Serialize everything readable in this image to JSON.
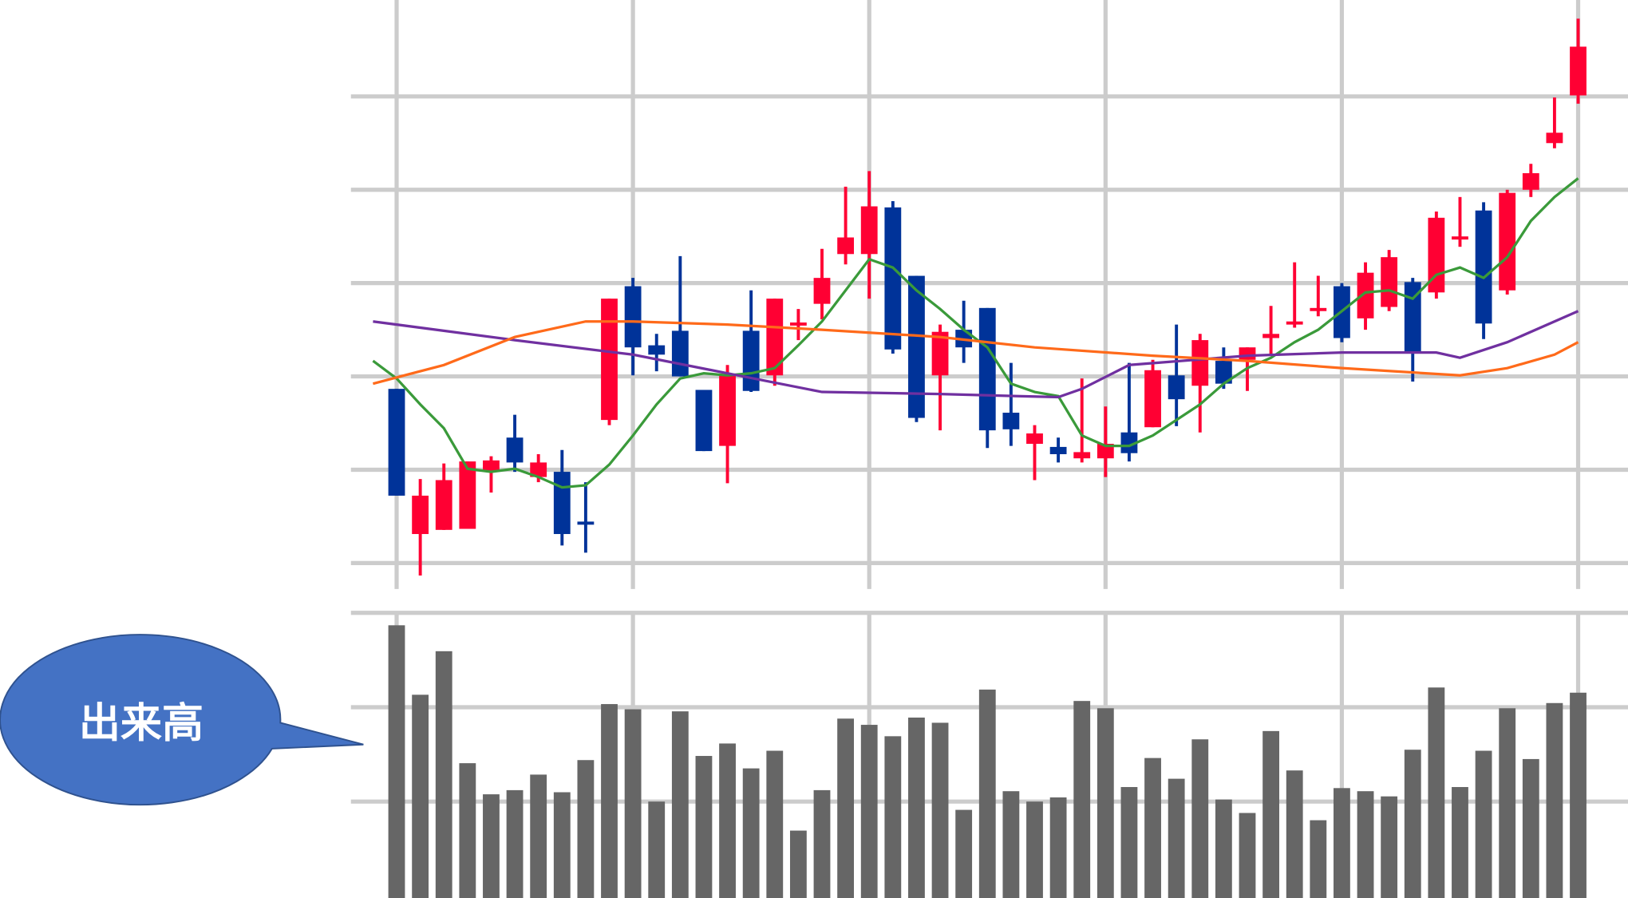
{
  "callout": "出来高",
  "chart_data": [
    {
      "type": "candlestick",
      "x": [
        0,
        1,
        2,
        3,
        4,
        5,
        6,
        7,
        8,
        9,
        10,
        11,
        12,
        13,
        14,
        15,
        16,
        17,
        18,
        19,
        20,
        21,
        22,
        23,
        24,
        25,
        26,
        27,
        28,
        29,
        30,
        31,
        32,
        33,
        34,
        35,
        36,
        37,
        38,
        39,
        40,
        41,
        42,
        43,
        44,
        45,
        46,
        47,
        48,
        49,
        50
      ],
      "open": [
        168,
        28,
        32,
        33,
        88,
        121,
        83,
        88,
        40,
        138,
        267,
        210,
        224,
        167,
        113,
        224,
        181,
        229,
        250,
        298,
        298,
        343,
        277,
        181,
        225,
        246,
        145,
        115,
        112,
        101,
        101,
        126,
        131,
        181,
        171,
        195,
        196,
        217,
        230,
        243,
        267,
        236,
        247,
        271,
        261,
        312,
        340,
        263,
        360,
        405,
        451
      ],
      "high": [
        168,
        81,
        96,
        98,
        103,
        143,
        105,
        109,
        78,
        255,
        275,
        221,
        296,
        167,
        191,
        263,
        255,
        245,
        303,
        363,
        378,
        349,
        277,
        230,
        253,
        246,
        193,
        133,
        121,
        178,
        151,
        193,
        196,
        230,
        221,
        208,
        208,
        248,
        290,
        277,
        270,
        290,
        302,
        275,
        339,
        353,
        348,
        360,
        385,
        449,
        525
      ],
      "low": [
        65,
        -12,
        32,
        33,
        68,
        88,
        78,
        17,
        10,
        133,
        181,
        185,
        180,
        108,
        77,
        165,
        171,
        215,
        235,
        288,
        255,
        202,
        136,
        128,
        193,
        111,
        113,
        80,
        97,
        97,
        83,
        98,
        131,
        132,
        126,
        168,
        166,
        201,
        227,
        238,
        213,
        225,
        243,
        175,
        255,
        305,
        216,
        259,
        353,
        400,
        443
      ],
      "close": [
        65,
        65,
        80,
        98,
        99,
        97,
        97,
        28,
        38,
        255,
        208,
        201,
        180,
        108,
        181,
        166,
        255,
        232,
        275,
        314,
        344,
        206,
        140,
        223,
        208,
        128,
        129,
        125,
        105,
        107,
        115,
        106,
        186,
        158,
        215,
        173,
        208,
        221,
        233,
        246,
        217,
        280,
        295,
        204,
        333,
        315,
        231,
        357,
        376,
        415,
        498
      ],
      "up_color": "#ff0033",
      "down_color": "#003399",
      "series": [
        {
          "color": "#3a9a3a",
          "x": [
            -1,
            0,
            1,
            2,
            3,
            4,
            5,
            6,
            7,
            8,
            9,
            10,
            11,
            12,
            13,
            14,
            15,
            16,
            17,
            18,
            19,
            20,
            21,
            22,
            23,
            24,
            25,
            26,
            27,
            28,
            29,
            30,
            31,
            32,
            33,
            34,
            35,
            36,
            37,
            38,
            39,
            40,
            41,
            42,
            43,
            44,
            45,
            46,
            47,
            48,
            49,
            50
          ],
          "values": [
            195,
            178,
            153,
            130,
            91,
            88,
            91,
            83,
            73,
            75,
            95,
            123,
            153,
            178,
            183,
            181,
            183,
            188,
            210,
            233,
            263,
            293,
            285,
            263,
            245,
            225,
            208,
            173,
            165,
            161,
            123,
            113,
            113,
            123,
            138,
            153,
            173,
            188,
            198,
            213,
            225,
            243,
            261,
            263,
            255,
            278,
            285,
            275,
            295,
            330,
            353,
            371
          ]
        },
        {
          "color": "#7030a0",
          "x": [
            -1,
            5,
            10,
            14,
            18,
            23,
            28,
            29,
            31,
            36,
            40,
            44,
            45,
            47,
            50
          ],
          "values": [
            233,
            215,
            201,
            183,
            165,
            163,
            160,
            168,
            191,
            200,
            203,
            203,
            198,
            213,
            243
          ]
        },
        {
          "color": "#ff6a1a",
          "x": [
            -1,
            2,
            5,
            8,
            10,
            14,
            18,
            23,
            27,
            32,
            36,
            40,
            45,
            47,
            49,
            50
          ],
          "values": [
            173,
            191,
            218,
            233,
            233,
            230,
            225,
            218,
            208,
            200,
            195,
            188,
            181,
            188,
            201,
            213
          ]
        }
      ],
      "xlim": [
        -2,
        52
      ],
      "xticks": [
        0,
        10,
        20,
        30,
        40,
        50
      ],
      "ylim": [
        -25,
        543
      ],
      "yticks": [
        0,
        90,
        180,
        270,
        360,
        450
      ],
      "grid": true
    },
    {
      "type": "bar",
      "x": [
        0,
        1,
        2,
        3,
        4,
        5,
        6,
        7,
        8,
        9,
        10,
        11,
        12,
        13,
        14,
        15,
        16,
        17,
        18,
        19,
        20,
        21,
        22,
        23,
        24,
        25,
        26,
        27,
        28,
        29,
        30,
        31,
        32,
        33,
        34,
        35,
        36,
        37,
        38,
        39,
        40,
        41,
        42,
        43,
        44,
        45,
        46,
        47,
        48,
        49,
        50
      ],
      "values": [
        263,
        196,
        238,
        130,
        100,
        104,
        119,
        102,
        133,
        187,
        182,
        93,
        180,
        137,
        149,
        125,
        142,
        65,
        104,
        173,
        167,
        156,
        174,
        169,
        85,
        201,
        103,
        93,
        97,
        190,
        183,
        107,
        135,
        115,
        153,
        95,
        82,
        161,
        123,
        75,
        106,
        103,
        98,
        143,
        203,
        107,
        142,
        183,
        134,
        188,
        198
      ],
      "color": "#666666",
      "xlim": [
        -2,
        52
      ],
      "xticks": [
        0,
        10,
        20,
        30,
        40,
        50
      ],
      "ylim": [
        0,
        275
      ],
      "yticks": [
        93,
        184,
        275
      ],
      "grid": true
    }
  ]
}
